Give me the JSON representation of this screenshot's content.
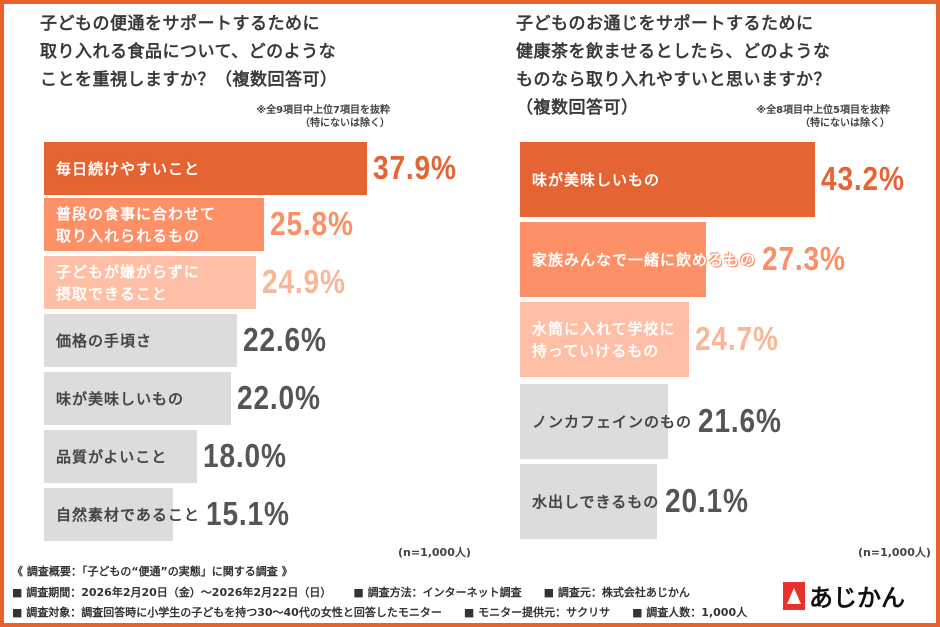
{
  "colors": {
    "accent": "#e56433",
    "mid": "#fe9068",
    "light": "#ffbfa6",
    "grey": "#dcdcdc",
    "pct_mid": "#fb8f66",
    "pct_light": "#fbb698",
    "pct_grey": "#555555"
  },
  "chart_data": [
    {
      "type": "bar",
      "orientation": "horizontal",
      "title": "子どもの便通をサポートするために\n取り入れる食品について、どのような\nことを重視しますか？（複数回答可）",
      "note": "※全9項目中上位7項目を抜粋\n（特にないは除く）",
      "sample": "(n=1,000人)",
      "categories": [
        "毎日続けやすいこと",
        "普段の食事に合わせて\n取り入れられるもの",
        "子どもが嫌がらずに\n摂取できること",
        "価格の手頃さ",
        "味が美味しいもの",
        "品質がよいこと",
        "自然素材であること"
      ],
      "values": [
        37.9,
        25.8,
        24.9,
        22.6,
        22.0,
        18.0,
        15.1
      ],
      "labels": [
        "37.9%",
        "25.8%",
        "24.9%",
        "22.6%",
        "22.0%",
        "18.0%",
        "15.1%"
      ]
    },
    {
      "type": "bar",
      "orientation": "horizontal",
      "title": "子どものお通じをサポートするために\n健康茶を飲ませるとしたら、どのような\nものなら取り入れやすいと思いますか？\n（複数回答可）",
      "note": "※全8項目中上位5項目を抜粋\n（特にないは除く）",
      "sample": "(n=1,000人)",
      "categories": [
        "味が美味しいもの",
        "家族みんなで一緒に飲めるもの",
        "水筒に入れて学校に\n持っていけるもの",
        "ノンカフェインのもの",
        "水出しできるもの"
      ],
      "values": [
        43.2,
        27.3,
        24.7,
        21.6,
        20.1
      ],
      "labels": [
        "43.2%",
        "27.3%",
        "24.7%",
        "21.6%",
        "20.1%"
      ]
    }
  ],
  "footer": {
    "line1": "《 調査概要：「子どもの“便通”の実態」に関する調査 》",
    "line2": [
      "■ 調査期間：2026年2月20日（金）～2026年2月22日（日）",
      "■ 調査方法：インターネット調査",
      "■ 調査元：株式会社あじかん"
    ],
    "line3": [
      "■ 調査対象：調査回答時に小学生の子どもを持つ30～40代の女性と回答したモニター",
      "■ モニター提供元：サクリサ",
      "■ 調査人数：1,000人"
    ]
  },
  "logo": {
    "text": "あじかん"
  }
}
